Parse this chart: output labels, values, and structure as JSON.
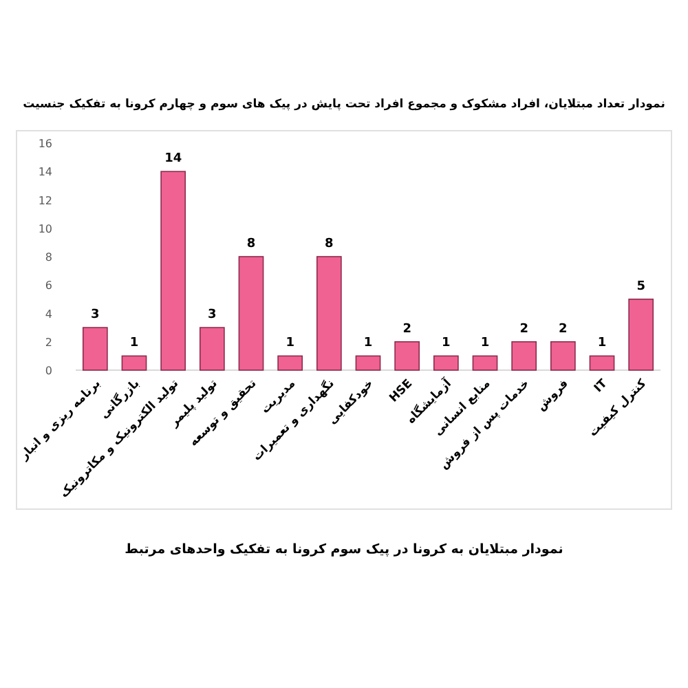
{
  "chart_data": {
    "type": "bar",
    "title": "نمودار تعداد مبتلایان، افراد مشکوک و مجموع افراد تحت پایش در پیک های سوم و چهارم کرونا به تفکیک جنسیت",
    "categories": [
      "برنامه ریزی و انبار",
      "بازرگانی",
      "تولید الکترونیک و مکاترونیک",
      "تولید پلیمر",
      "تحقیق و توسعه",
      "مدیریت",
      "نگهداری و تعمیرات",
      "خودکفایی",
      "HSE",
      "آزمایشگاه",
      "منابع انسانی",
      "خدمات پس از فروش",
      "فروش",
      "IT",
      "کنترل کیفیت"
    ],
    "values": [
      3,
      1,
      14,
      3,
      8,
      1,
      8,
      1,
      2,
      1,
      1,
      2,
      2,
      1,
      5
    ],
    "color": "#f06292",
    "ylim": [
      0,
      16
    ],
    "yticks": [
      0,
      2,
      4,
      6,
      8,
      10,
      12,
      14,
      16
    ],
    "data_labels": true,
    "annotations": [
      "نمودار مبتلایان به کرونا در پیک سوم کرونا به تفکیک واحدهای مرتبط"
    ]
  }
}
